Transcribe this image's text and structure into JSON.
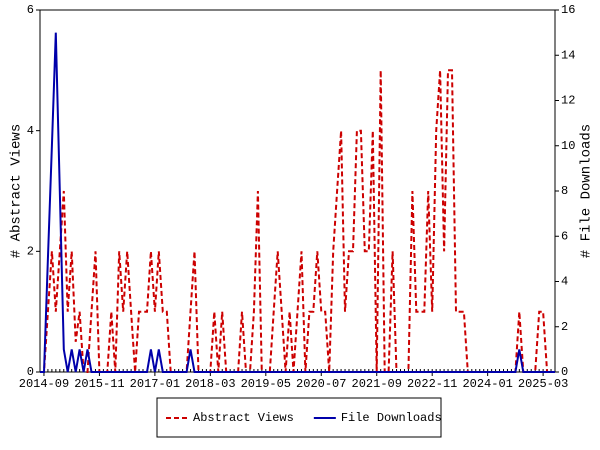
{
  "chart_data": {
    "type": "line",
    "x": [
      "2014-08",
      "2014-09",
      "2014-10",
      "2014-11",
      "2014-12",
      "2015-01",
      "2015-02",
      "2015-03",
      "2015-04",
      "2015-05",
      "2015-06",
      "2015-07",
      "2015-08",
      "2015-09",
      "2015-10",
      "2015-11",
      "2015-12",
      "2016-01",
      "2016-02",
      "2016-03",
      "2016-04",
      "2016-05",
      "2016-06",
      "2016-07",
      "2016-08",
      "2016-09",
      "2016-10",
      "2016-11",
      "2016-12",
      "2017-01",
      "2017-02",
      "2017-03",
      "2017-04",
      "2017-05",
      "2017-06",
      "2017-07",
      "2017-08",
      "2017-09",
      "2017-10",
      "2017-11",
      "2017-12",
      "2018-01",
      "2018-02",
      "2018-03",
      "2018-04",
      "2018-05",
      "2018-06",
      "2018-07",
      "2018-08",
      "2018-09",
      "2018-10",
      "2018-11",
      "2018-12",
      "2019-01",
      "2019-02",
      "2019-03",
      "2019-04",
      "2019-05",
      "2019-06",
      "2019-07",
      "2019-08",
      "2019-09",
      "2019-10",
      "2019-11",
      "2019-12",
      "2020-01",
      "2020-02",
      "2020-03",
      "2020-04",
      "2020-05",
      "2020-06",
      "2020-07",
      "2020-08",
      "2020-09",
      "2020-10",
      "2020-11",
      "2020-12",
      "2021-01",
      "2021-02",
      "2021-03",
      "2021-04",
      "2021-05",
      "2021-06",
      "2021-07",
      "2021-08",
      "2021-09",
      "2021-10",
      "2021-11",
      "2021-12",
      "2022-01",
      "2022-02",
      "2022-03",
      "2022-04",
      "2022-05",
      "2022-06",
      "2022-07",
      "2022-08",
      "2022-09",
      "2022-10",
      "2022-11",
      "2022-12",
      "2023-01",
      "2023-02",
      "2023-03",
      "2023-04",
      "2023-05",
      "2023-06",
      "2023-07",
      "2023-08",
      "2023-09",
      "2023-10",
      "2023-11",
      "2023-12",
      "2024-01",
      "2024-02",
      "2024-03",
      "2024-04",
      "2024-05",
      "2024-06",
      "2024-07",
      "2024-08",
      "2024-09",
      "2024-10",
      "2024-11",
      "2024-12",
      "2025-01",
      "2025-02",
      "2025-03",
      "2025-04",
      "2025-05",
      "2025-06"
    ],
    "series": [
      {
        "name": "Abstract Views",
        "color": "#cc0000",
        "style": "dashed",
        "axis": "y",
        "values": [
          0,
          0,
          1,
          2,
          1,
          2,
          3,
          1,
          2,
          0.5,
          1,
          0,
          0,
          1,
          2,
          0,
          0,
          0,
          1,
          0,
          2,
          1,
          2,
          1,
          0,
          1,
          1,
          1,
          2,
          1,
          2,
          1,
          1,
          0,
          0,
          0,
          0,
          0,
          1,
          2,
          0,
          0,
          0,
          0,
          1,
          0,
          1,
          0,
          0,
          0,
          0,
          1,
          0,
          0,
          1,
          3,
          0,
          0,
          0,
          1,
          2,
          1,
          0,
          1,
          0,
          1,
          2,
          0,
          1,
          1,
          2,
          1,
          1,
          0,
          2,
          3,
          4,
          1,
          2,
          2,
          4,
          4,
          2,
          2,
          4,
          0,
          5,
          0,
          0,
          2,
          0,
          0,
          0,
          0,
          3,
          1,
          1,
          1,
          3,
          1,
          4,
          5,
          2,
          5,
          5,
          1,
          1,
          1,
          0,
          0,
          0,
          0,
          0,
          0,
          0,
          0,
          0,
          0,
          0,
          0,
          0,
          1,
          0,
          0,
          0,
          0,
          1,
          1,
          0,
          0,
          0
        ]
      },
      {
        "name": "File Downloads",
        "color": "#0000aa",
        "style": "solid",
        "axis": "y2",
        "values": [
          0,
          0,
          5,
          10,
          15,
          8,
          1,
          0,
          1,
          0,
          1,
          0,
          1,
          0,
          0,
          0,
          0,
          0,
          0,
          0,
          0,
          0,
          0,
          0,
          0,
          0,
          0,
          0,
          1,
          0,
          1,
          0,
          0,
          0,
          0,
          0,
          0,
          0,
          1,
          0,
          0,
          0,
          0,
          0,
          0,
          0,
          0,
          0,
          0,
          0,
          0,
          0,
          0,
          0,
          0,
          0,
          0,
          0,
          0,
          0,
          0,
          0,
          0,
          0,
          0,
          0,
          0,
          0,
          0,
          0,
          0,
          0,
          0,
          0,
          0,
          0,
          0,
          0,
          0,
          0,
          0,
          0,
          0,
          0,
          0,
          0,
          0,
          0,
          0,
          0,
          0,
          0,
          0,
          0,
          0,
          0,
          0,
          0,
          0,
          0,
          0,
          0,
          0,
          0,
          0,
          0,
          0,
          0,
          0,
          0,
          0,
          0,
          0,
          0,
          0,
          0,
          0,
          0,
          0,
          0,
          0,
          1,
          0,
          0,
          0,
          0,
          0,
          0,
          0,
          0,
          0
        ]
      }
    ],
    "xlim": [
      "2014-08",
      "2025-06"
    ],
    "xticks": [
      "2014-09",
      "2015-11",
      "2017-01",
      "2018-03",
      "2019-05",
      "2020-07",
      "2021-09",
      "2022-11",
      "2024-01",
      "2025-03"
    ],
    "ylabel": "# Abstract Views",
    "ylim": [
      0,
      6
    ],
    "yticks": [
      0,
      2,
      4,
      6
    ],
    "y2label": "# File Downloads",
    "y2lim": [
      0,
      16
    ],
    "y2ticks": [
      0,
      2,
      4,
      6,
      8,
      10,
      12,
      14,
      16
    ],
    "legend": "bottom"
  }
}
